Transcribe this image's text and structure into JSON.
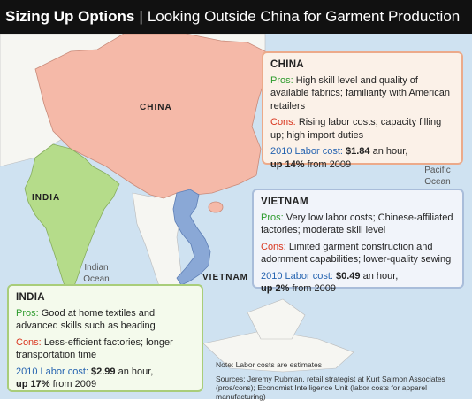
{
  "header": {
    "title": "Sizing Up Options",
    "separator": "|",
    "subtitle": "Looking Outside China for Garment Production"
  },
  "map": {
    "labels": {
      "china": "CHINA",
      "india": "INDIA",
      "vietnam": "VIETNAM"
    },
    "oceans": {
      "pacific_line1": "Pacific",
      "pacific_line2": "Ocean",
      "indian_line1": "Indian",
      "indian_line2": "Ocean"
    },
    "colors": {
      "water": "#cfe2f1",
      "land": "#f6f6f2",
      "china": "#f5b9a8",
      "india": "#b5dc8a",
      "vietnam": "#8aa8d6"
    }
  },
  "china_box": {
    "name": "CHINA",
    "pros_label": "Pros:",
    "pros_text": "High skill level and quality of available fabrics; familiarity with American retailers",
    "cons_label": "Cons:",
    "cons_text": "Rising labor costs; capacity filling up; high import duties",
    "labor_label": "2010 Labor cost:",
    "labor_value": "$1.84",
    "labor_unit": "an hour,",
    "labor_change": "up 14%",
    "labor_from": "from 2009"
  },
  "vietnam_box": {
    "name": "VIETNAM",
    "pros_label": "Pros:",
    "pros_text": "Very low labor costs; Chinese-affiliated factories; moderate skill level",
    "cons_label": "Cons:",
    "cons_text": "Limited garment construction and adornment capabilities; lower-quality sewing",
    "labor_label": "2010 Labor cost:",
    "labor_value": "$0.49",
    "labor_unit": "an hour,",
    "labor_change": "up 2%",
    "labor_from": "from 2009"
  },
  "india_box": {
    "name": "INDIA",
    "pros_label": "Pros:",
    "pros_text": "Good at home textiles and advanced skills such as beading",
    "cons_label": "Cons:",
    "cons_text": "Less-efficient factories; longer transportation time",
    "labor_label": "2010 Labor cost:",
    "labor_value": "$2.99",
    "labor_unit": "an hour,",
    "labor_change": "up 17%",
    "labor_from": "from 2009"
  },
  "notes": {
    "note": "Note: Labor costs are estimates",
    "sources": "Sources: Jeremy Rubman, retail strategist at Kurt Salmon Associates (pros/cons); Economist Intelligence Unit (labor costs for apparel manufacturing)"
  }
}
